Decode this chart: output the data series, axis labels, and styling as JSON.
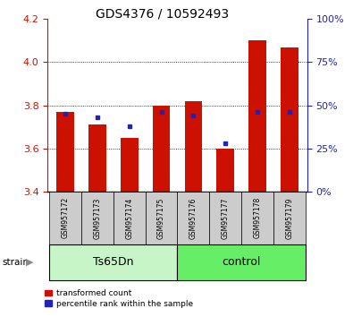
{
  "title": "GDS4376 / 10592493",
  "samples": [
    "GSM957172",
    "GSM957173",
    "GSM957174",
    "GSM957175",
    "GSM957176",
    "GSM957177",
    "GSM957178",
    "GSM957179"
  ],
  "red_values": [
    3.77,
    3.71,
    3.65,
    3.8,
    3.82,
    3.6,
    4.1,
    4.07
  ],
  "blue_pct": [
    45,
    43,
    38,
    46,
    44,
    28,
    46,
    46
  ],
  "ymin": 3.4,
  "ymax": 4.2,
  "yticks": [
    3.4,
    3.6,
    3.8,
    4.0,
    4.2
  ],
  "right_yticks": [
    0,
    25,
    50,
    75,
    100
  ],
  "groups": [
    {
      "label": "Ts65Dn",
      "indices": [
        0,
        1,
        2,
        3
      ],
      "color": "#c8f5c8"
    },
    {
      "label": "control",
      "indices": [
        4,
        5,
        6,
        7
      ],
      "color": "#66ee66"
    }
  ],
  "bar_color": "#cc1100",
  "blue_color": "#2222bb",
  "tick_bg_color": "#cccccc",
  "legend_items": [
    {
      "label": "transformed count",
      "color": "#cc1100"
    },
    {
      "label": "percentile rank within the sample",
      "color": "#2222bb"
    }
  ],
  "strain_label": "strain",
  "group_label_fontsize": 9,
  "title_fontsize": 10
}
